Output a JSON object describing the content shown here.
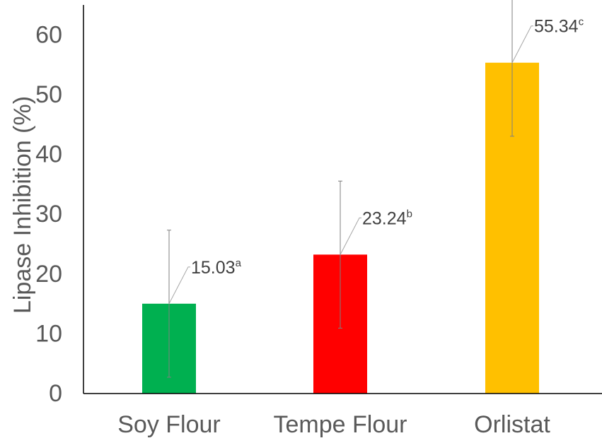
{
  "chart_data": {
    "type": "bar",
    "title": "",
    "xlabel": "",
    "ylabel": "Lipase Inhibition (%)",
    "ylim": [
      0,
      65
    ],
    "yticks": [
      "0",
      "10",
      "20",
      "30",
      "40",
      "50",
      "60"
    ],
    "grid": false,
    "legend": "none",
    "categories": [
      "Soy Flour",
      "Tempe Flour",
      "Orlistat"
    ],
    "values": [
      15.03,
      23.24,
      55.34
    ],
    "errors": [
      12.3,
      12.3,
      12.3
    ],
    "value_labels": [
      "15.03",
      "23.24",
      "55.34"
    ],
    "significance": [
      "a",
      "b",
      "c"
    ],
    "colors": [
      "#00b050",
      "#ff0000",
      "#ffc000"
    ]
  }
}
